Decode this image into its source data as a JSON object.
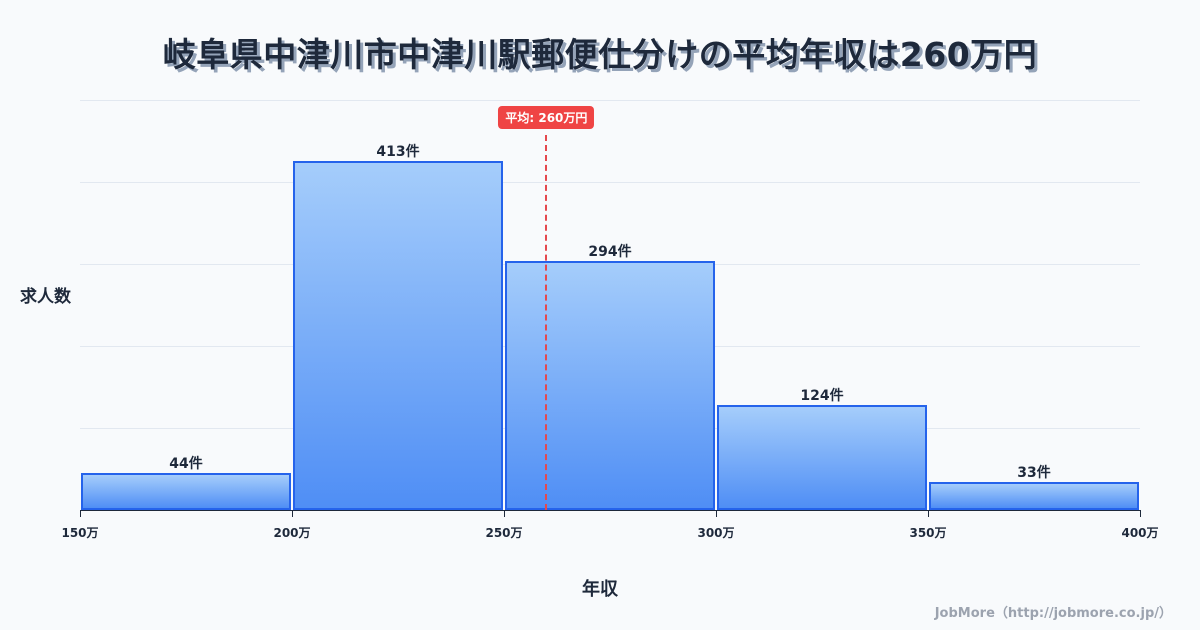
{
  "title": "岐阜県中津川市中津川駅郵便仕分けの平均年収は260万円",
  "axes": {
    "ylabel": "求人数",
    "xlabel": "年収"
  },
  "mean": {
    "value": 260,
    "label": "平均: 260万円",
    "color": "#ef4444"
  },
  "credit": "JobMore（http://jobmore.co.jp/）",
  "chart_data": {
    "type": "bar",
    "title": "岐阜県中津川市中津川駅郵便仕分けの平均年収は260万円",
    "xlabel": "年収",
    "ylabel": "求人数",
    "bins": [
      [
        150,
        200
      ],
      [
        200,
        250
      ],
      [
        250,
        300
      ],
      [
        300,
        350
      ],
      [
        350,
        400
      ]
    ],
    "categories": [
      "150万-200万",
      "200万-250万",
      "250万-300万",
      "300万-350万",
      "350万-400万"
    ],
    "values": [
      44,
      413,
      294,
      124,
      33
    ],
    "value_labels": [
      "44件",
      "413件",
      "294件",
      "124件",
      "33件"
    ],
    "x_ticks": [
      150,
      200,
      250,
      300,
      350,
      400
    ],
    "x_tick_labels": [
      "150万",
      "200万",
      "250万",
      "300万",
      "350万",
      "400万"
    ],
    "xlim": [
      150,
      400
    ],
    "ylim": [
      0,
      485
    ],
    "grid": true,
    "y_tick_labels_visible": false,
    "annotations": [
      {
        "type": "vline",
        "x": 260,
        "label": "平均: 260万円",
        "style": "dashed",
        "color": "#ef4444"
      }
    ],
    "bar_color": "#4f8ef5",
    "bar_edge_color": "#2563eb"
  }
}
